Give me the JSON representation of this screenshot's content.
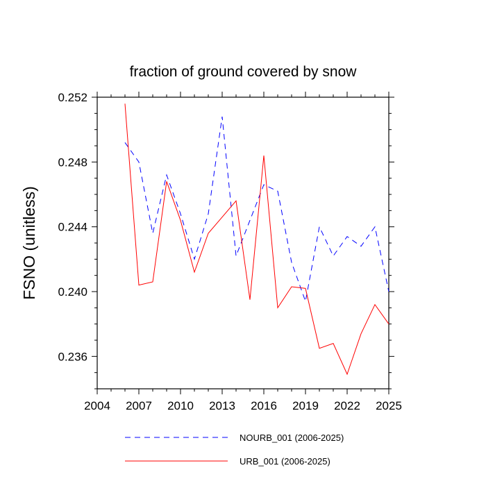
{
  "chart_data": {
    "type": "line",
    "title": "fraction of ground covered by snow",
    "xlabel": "",
    "ylabel": "FSNO  (unitless)",
    "xlim": [
      2004,
      2025
    ],
    "ylim": [
      0.234,
      0.252
    ],
    "x_ticks": [
      2004,
      2007,
      2010,
      2013,
      2016,
      2019,
      2022,
      2025
    ],
    "x_tick_labels": [
      "2004",
      "2007",
      "2010",
      "2013",
      "2016",
      "2019",
      "2022",
      "2025"
    ],
    "y_ticks": [
      0.236,
      0.24,
      0.244,
      0.248,
      0.252
    ],
    "y_tick_labels": [
      "0.236",
      "0.240",
      "0.244",
      "0.248",
      "0.252"
    ],
    "grid": false,
    "legend_position": "bottom",
    "x": [
      2006,
      2007,
      2008,
      2009,
      2010,
      2011,
      2012,
      2013,
      2014,
      2015,
      2016,
      2017,
      2018,
      2019,
      2020,
      2021,
      2022,
      2023,
      2024,
      2025
    ],
    "series": [
      {
        "name": "NOURB_001 (2006-2025)",
        "color": "#0000ff",
        "style": "dashed",
        "values": [
          0.2492,
          0.248,
          0.2436,
          0.2472,
          0.2448,
          0.242,
          0.2448,
          0.2508,
          0.2422,
          0.2444,
          0.2466,
          0.2462,
          0.2418,
          0.2394,
          0.244,
          0.2422,
          0.2434,
          0.2428,
          0.244,
          0.24
        ]
      },
      {
        "name": "URB_001 (2006-2025)",
        "color": "#ff0000",
        "style": "solid",
        "values": [
          0.2516,
          0.2404,
          0.2406,
          0.2468,
          0.2444,
          0.2412,
          0.2436,
          0.2446,
          0.2456,
          0.2395,
          0.2484,
          0.239,
          0.2403,
          0.2402,
          0.2365,
          0.2368,
          0.2349,
          0.2374,
          0.2392,
          0.238
        ]
      }
    ]
  }
}
